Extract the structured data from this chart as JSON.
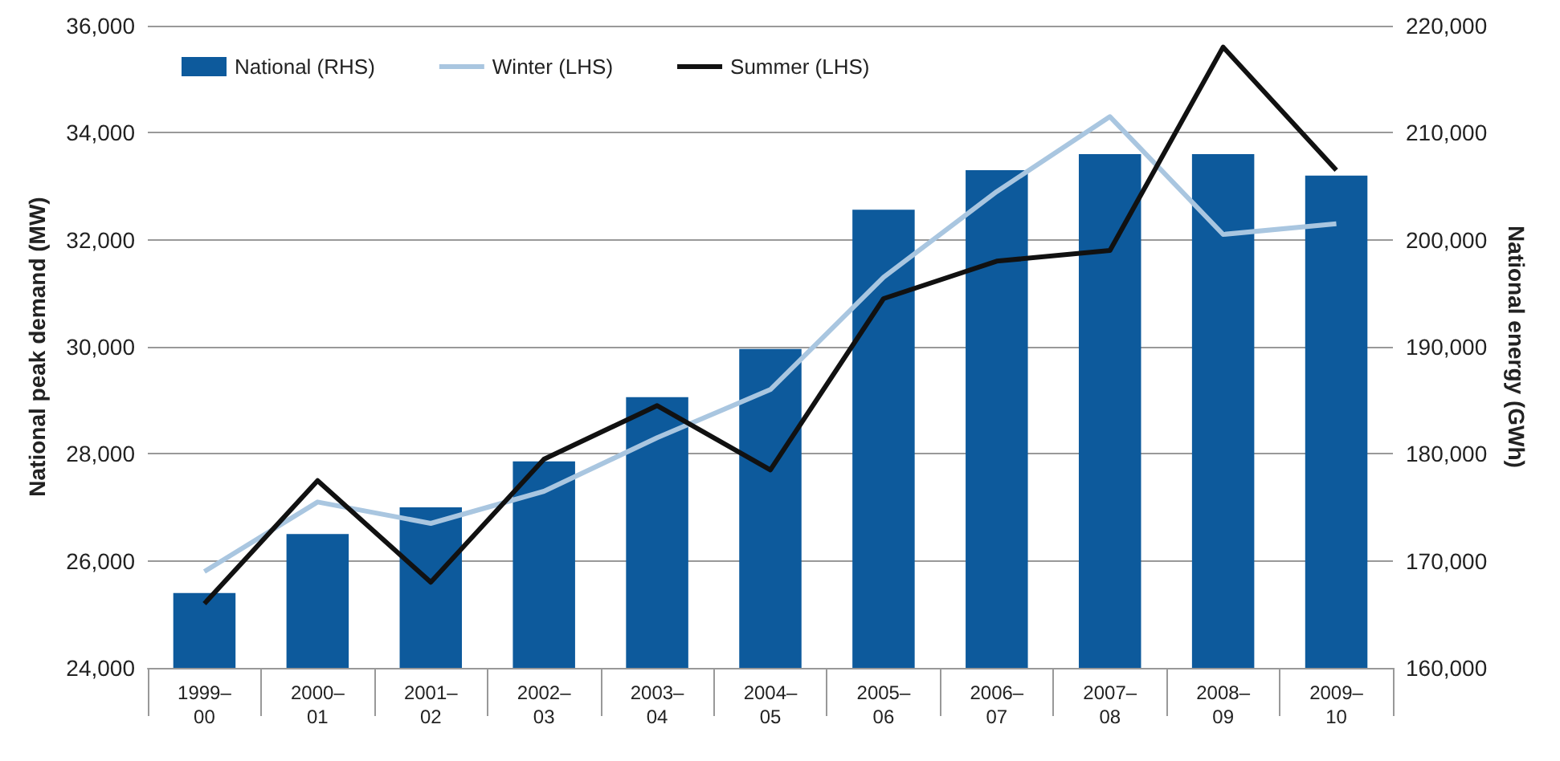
{
  "chart_data": {
    "type": "bar",
    "ylabel": "National peak demand (MW)",
    "y2label": "National energy (GWh)",
    "categories": [
      "1999–00",
      "2000–01",
      "2001–02",
      "2002–03",
      "2003–04",
      "2004–05",
      "2005–06",
      "2006–07",
      "2007–08",
      "2008–09",
      "2009–10"
    ],
    "series": [
      {
        "name": "National (RHS)",
        "axis": "y2",
        "color": "#0d5a9c",
        "values": [
          167000,
          172500,
          175000,
          179300,
          185300,
          189800,
          202800,
          206500,
          208000,
          208000,
          206000
        ]
      },
      {
        "name": "Winter (LHS)",
        "type": "line",
        "color": "#a9c6e0",
        "values": [
          25800,
          27100,
          26700,
          27300,
          28300,
          29200,
          31300,
          32900,
          34300,
          32100,
          32300
        ]
      },
      {
        "name": "Summer (LHS)",
        "type": "line",
        "color": "#111111",
        "values": [
          25200,
          27500,
          25600,
          27900,
          28900,
          27700,
          30900,
          31600,
          31800,
          35600,
          33300
        ]
      }
    ],
    "ylim": [
      24000,
      36000
    ],
    "yticks": [
      {
        "value": 24000,
        "label": "24,000"
      },
      {
        "value": 26000,
        "label": "26,000"
      },
      {
        "value": 28000,
        "label": "28,000"
      },
      {
        "value": 30000,
        "label": "30,000"
      },
      {
        "value": 32000,
        "label": "32,000"
      },
      {
        "value": 34000,
        "label": "34,000"
      },
      {
        "value": 36000,
        "label": "36,000"
      }
    ],
    "y2lim": [
      160000,
      220000
    ],
    "y2ticks": [
      {
        "value": 160000,
        "label": "160,000"
      },
      {
        "value": 170000,
        "label": "170,000"
      },
      {
        "value": 180000,
        "label": "180,000"
      },
      {
        "value": 190000,
        "label": "190,000"
      },
      {
        "value": 200000,
        "label": "200,000"
      },
      {
        "value": 210000,
        "label": "210,000"
      },
      {
        "value": 220000,
        "label": "220,000"
      }
    ],
    "grid": "y",
    "legend": "top left",
    "marker": "none"
  }
}
